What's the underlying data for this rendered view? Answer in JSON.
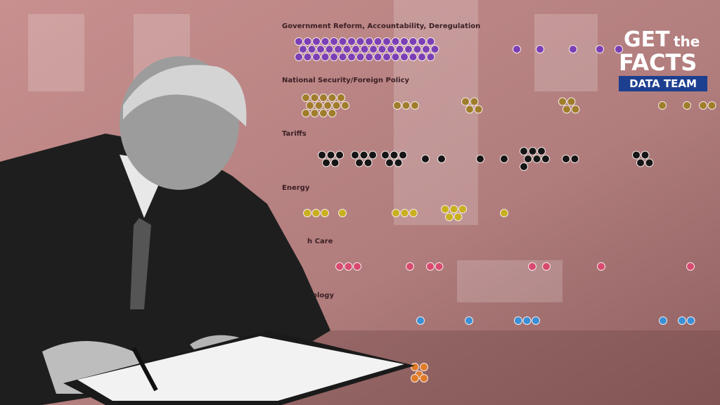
{
  "labels": [
    "Government Reform, Accountability, Deregulation",
    "National Security/Foreign Policy",
    "Tariffs",
    "Energy",
    "h Care",
    "nology"
  ],
  "logo": {
    "get": "GET",
    "the": "the",
    "facts": "FACTS",
    "badge": "DATA TEAM"
  }
}
